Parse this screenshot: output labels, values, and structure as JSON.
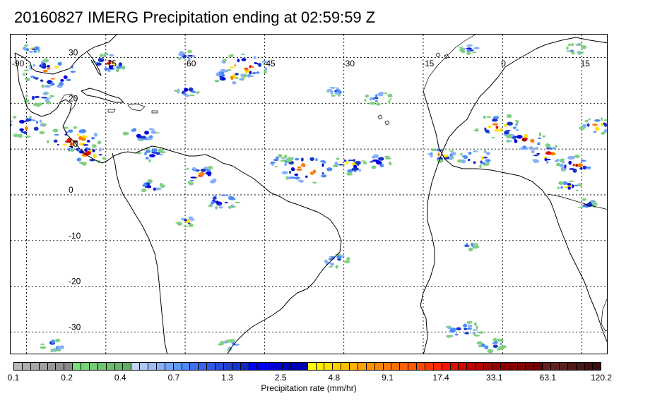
{
  "title": "20160827 IMERG Precipitation ending at 02:59:59 Z",
  "map": {
    "lon_labels": [
      "-90",
      "-75",
      "-60",
      "-45",
      "-30",
      "-15",
      "0",
      "15"
    ],
    "lat_labels": [
      "30",
      "20",
      "10",
      "0",
      "-10",
      "-20",
      "-30"
    ],
    "lon_range": [
      -93,
      20
    ],
    "lat_range": [
      -35,
      35
    ]
  },
  "colorbar": {
    "title": "Precipitation rate (mm/hr)",
    "tick_labels": [
      "0.1",
      "0.2",
      "0.4",
      "0.7",
      "1.3",
      "2.5",
      "4.8",
      "9.1",
      "17.4",
      "33.1",
      "63.1",
      "120.2"
    ],
    "colors": [
      "#b8b8b8",
      "#b0b0b0",
      "#a8a8a8",
      "#a0a0a0",
      "#989898",
      "#909090",
      "#888888",
      "#7cdc7c",
      "#78d478",
      "#74cc74",
      "#70c470",
      "#6cbc6c",
      "#68b468",
      "#64ac64",
      "#c4d4f8",
      "#b0c8f8",
      "#9cbcf8",
      "#88b0f8",
      "#74a4f8",
      "#6098f8",
      "#4c8cf8",
      "#4070f0",
      "#3864e8",
      "#3058e0",
      "#284cd8",
      "#2040d0",
      "#1834c8",
      "#1028c0",
      "#0000ff",
      "#0000f0",
      "#0000e0",
      "#0000d4",
      "#0000c8",
      "#0000bc",
      "#0000b0",
      "#ffff00",
      "#fff000",
      "#ffe000",
      "#ffd000",
      "#ffc000",
      "#ffb000",
      "#ffa000",
      "#ff9400",
      "#ff8800",
      "#ff7c00",
      "#ff7000",
      "#ff6400",
      "#ff5800",
      "#ff4c00",
      "#ff3800",
      "#ff2800",
      "#f01800",
      "#e01000",
      "#d00800",
      "#c00000",
      "#b00000",
      "#a00000",
      "#980000",
      "#900000",
      "#880000",
      "#800000",
      "#780000",
      "#700000",
      "#682020",
      "#602020",
      "#582020",
      "#501818",
      "#481818",
      "#401010",
      "#381010"
    ]
  }
}
